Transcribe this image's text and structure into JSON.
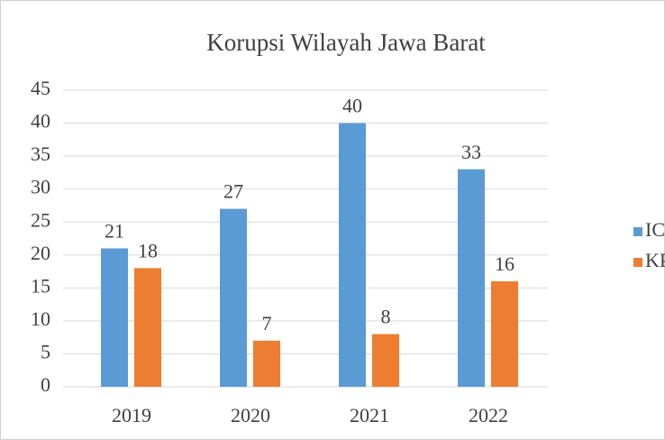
{
  "chart_data": {
    "type": "bar",
    "title": "Korupsi Wilayah Jawa Barat",
    "categories": [
      "2019",
      "2020",
      "2021",
      "2022"
    ],
    "series": [
      {
        "name": "ICW",
        "color": "#5b9bd5",
        "values": [
          21,
          27,
          40,
          33
        ]
      },
      {
        "name": "KPK",
        "color": "#ed7d31",
        "values": [
          18,
          7,
          8,
          16
        ]
      }
    ],
    "ylim": [
      0,
      45
    ],
    "yticks": [
      0,
      5,
      10,
      15,
      20,
      25,
      30,
      35,
      40,
      45
    ],
    "grid": true,
    "legend": "right"
  }
}
